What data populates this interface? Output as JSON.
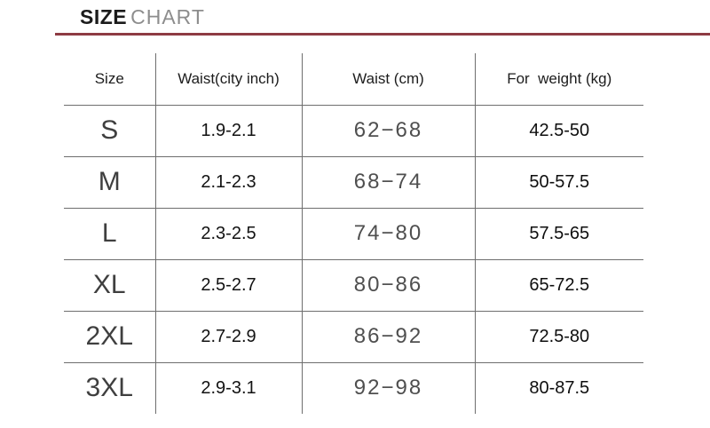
{
  "title": {
    "primary": "SIZE",
    "secondary": "CHART"
  },
  "accent_color": "#8e3b43",
  "chart_data": {
    "type": "table",
    "title": "SIZE CHART",
    "columns": [
      "Size",
      "Waist(city inch)",
      "Waist (cm)",
      "For  weight (kg)"
    ],
    "rows": [
      [
        "S",
        "1.9-2.1",
        "62−68",
        "42.5-50"
      ],
      [
        "M",
        "2.1-2.3",
        "68−74",
        "50-57.5"
      ],
      [
        "L",
        "2.3-2.5",
        "74−80",
        "57.5-65"
      ],
      [
        "XL",
        "2.5-2.7",
        "80−86",
        "65-72.5"
      ],
      [
        "2XL",
        "2.7-2.9",
        "86−92",
        "72.5-80"
      ],
      [
        "3XL",
        "2.9-3.1",
        "92−98",
        "80-87.5"
      ]
    ],
    "layout": {
      "grid": "inner-lines-only",
      "outer_border": false
    }
  }
}
